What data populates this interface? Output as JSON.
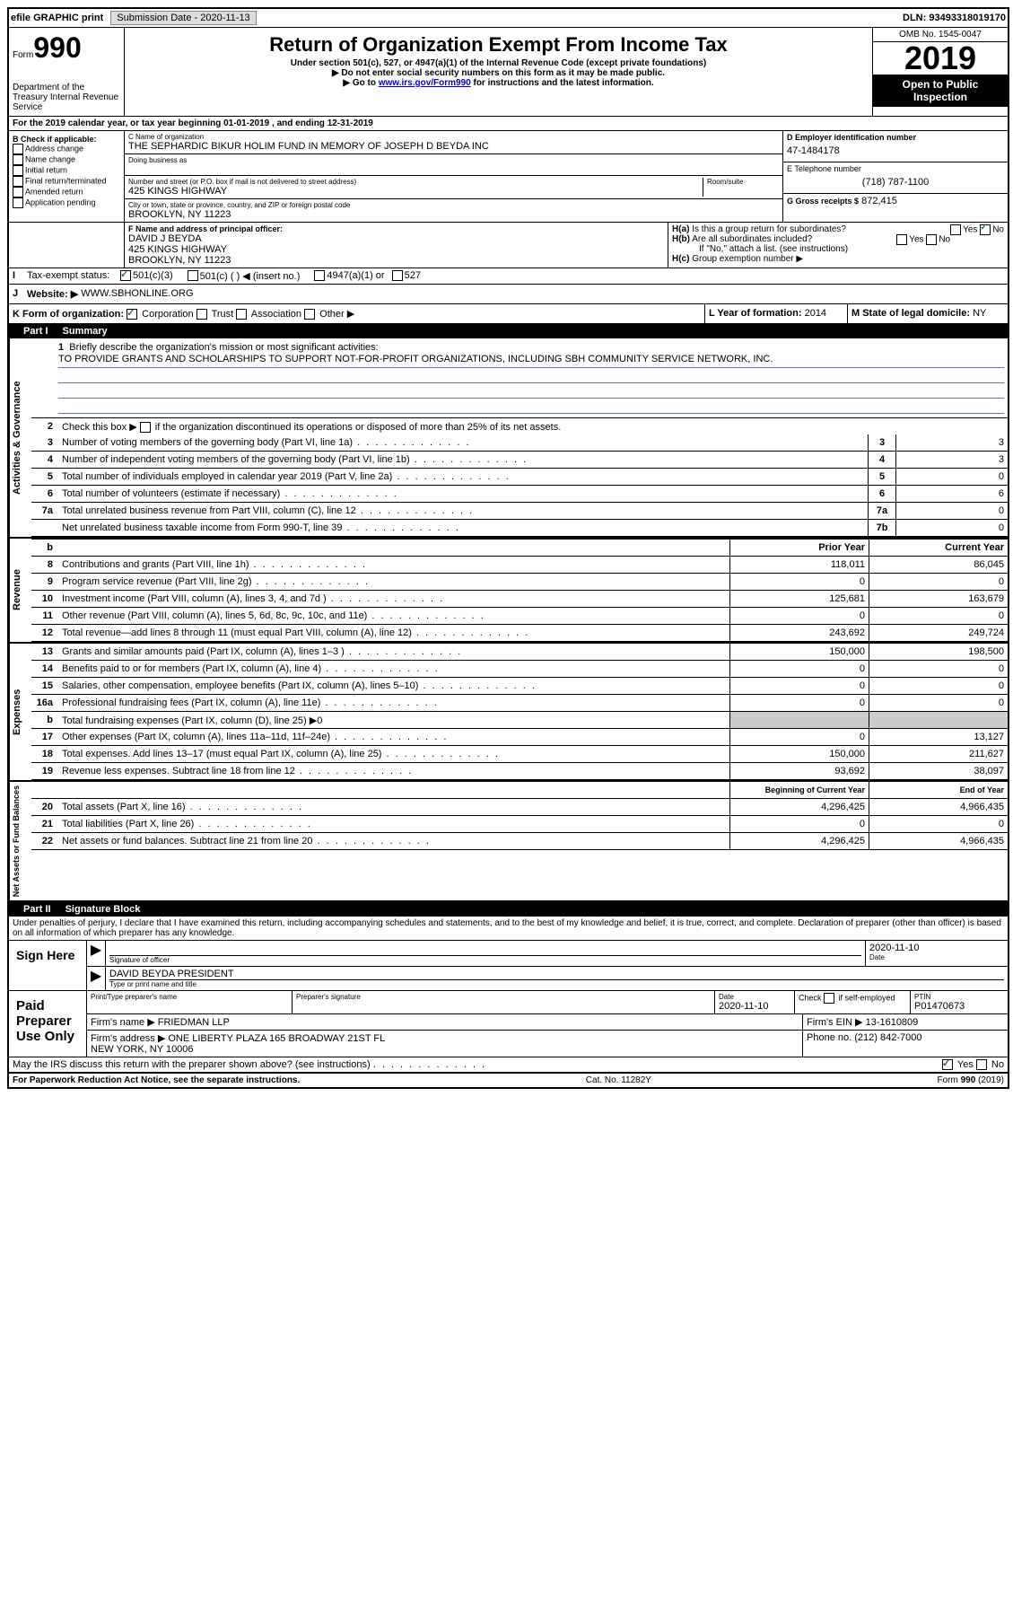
{
  "topbar": {
    "efile": "efile GRAPHIC print",
    "submission_label": "Submission Date - 2020-11-13",
    "dln": "DLN: 93493318019170"
  },
  "header": {
    "form_label": "Form",
    "form_num": "990",
    "dept": "Department of the Treasury\nInternal Revenue Service",
    "title": "Return of Organization Exempt From Income Tax",
    "sub1": "Under section 501(c), 527, or 4947(a)(1) of the Internal Revenue Code (except private foundations)",
    "sub2": "▶ Do not enter social security numbers on this form as it may be made public.",
    "sub3_pre": "▶ Go to ",
    "sub3_link": "www.irs.gov/Form990",
    "sub3_post": " for instructions and the latest information.",
    "omb": "OMB No. 1545-0047",
    "year": "2019",
    "open": "Open to Public Inspection"
  },
  "line_a": "For the 2019 calendar year, or tax year beginning 01-01-2019     , and ending 12-31-2019",
  "col_b": {
    "title": "B Check if applicable:",
    "items": [
      "Address change",
      "Name change",
      "Initial return",
      "Final return/terminated",
      "Amended return",
      "Application pending"
    ]
  },
  "col_c": {
    "name_label": "C Name of organization",
    "name": "THE SEPHARDIC BIKUR HOLIM FUND IN MEMORY OF JOSEPH D BEYDA INC",
    "dba_label": "Doing business as",
    "addr_label": "Number and street (or P.O. box if mail is not delivered to street address)",
    "room_label": "Room/suite",
    "addr": "425 KINGS HIGHWAY",
    "city_label": "City or town, state or province, country, and ZIP or foreign postal code",
    "city": "BROOKLYN, NY  11223"
  },
  "col_d": {
    "ein_label": "D Employer identification number",
    "ein": "47-1484178",
    "phone_label": "E Telephone number",
    "phone": "(718) 787-1100",
    "gross_label": "G Gross receipts $",
    "gross": "872,415"
  },
  "row_f": {
    "label": "F  Name and address of principal officer:",
    "name": "DAVID J BEYDA",
    "addr1": "425 KINGS HIGHWAY",
    "addr2": "BROOKLYN, NY  11223"
  },
  "row_h": {
    "ha": "Is this a group return for subordinates?",
    "hb": "Are all subordinates included?",
    "hb_note": "If \"No,\" attach a list. (see instructions)",
    "hc": "Group exemption number ▶"
  },
  "row_i": {
    "label": "Tax-exempt status:",
    "opts": [
      "501(c)(3)",
      "501(c) (  ) ◀ (insert no.)",
      "4947(a)(1) or",
      "527"
    ]
  },
  "row_j": {
    "label": "Website: ▶",
    "val": "WWW.SBHONLINE.ORG"
  },
  "row_k": {
    "label": "K Form of organization:",
    "opts": [
      "Corporation",
      "Trust",
      "Association",
      "Other ▶"
    ]
  },
  "row_l": {
    "label": "L Year of formation:",
    "val": "2014"
  },
  "row_m": {
    "label": "M State of legal domicile:",
    "val": "NY"
  },
  "part1": {
    "title": "Part I",
    "name": "Summary"
  },
  "mission": {
    "label": "Briefly describe the organization's mission or most significant activities:",
    "text": "TO PROVIDE GRANTS AND SCHOLARSHIPS TO SUPPORT NOT-FOR-PROFIT ORGANIZATIONS, INCLUDING SBH COMMUNITY SERVICE NETWORK, INC."
  },
  "governance": {
    "label": "Activities & Governance",
    "line2": "Check this box ▶       if the organization discontinued its operations or disposed of more than 25% of its net assets.",
    "rows": [
      {
        "n": "3",
        "d": "Number of voting members of the governing body (Part VI, line 1a)",
        "b": "3",
        "v": "3"
      },
      {
        "n": "4",
        "d": "Number of independent voting members of the governing body (Part VI, line 1b)",
        "b": "4",
        "v": "3"
      },
      {
        "n": "5",
        "d": "Total number of individuals employed in calendar year 2019 (Part V, line 2a)",
        "b": "5",
        "v": "0"
      },
      {
        "n": "6",
        "d": "Total number of volunteers (estimate if necessary)",
        "b": "6",
        "v": "6"
      },
      {
        "n": "7a",
        "d": "Total unrelated business revenue from Part VIII, column (C), line 12",
        "b": "7a",
        "v": "0"
      },
      {
        "n": "",
        "d": "Net unrelated business taxable income from Form 990-T, line 39",
        "b": "7b",
        "v": "0"
      }
    ]
  },
  "revenue": {
    "label": "Revenue",
    "prior_h": "Prior Year",
    "curr_h": "Current Year",
    "rows": [
      {
        "n": "8",
        "d": "Contributions and grants (Part VIII, line 1h)",
        "p": "118,011",
        "c": "86,045"
      },
      {
        "n": "9",
        "d": "Program service revenue (Part VIII, line 2g)",
        "p": "0",
        "c": "0"
      },
      {
        "n": "10",
        "d": "Investment income (Part VIII, column (A), lines 3, 4, and 7d )",
        "p": "125,681",
        "c": "163,679"
      },
      {
        "n": "11",
        "d": "Other revenue (Part VIII, column (A), lines 5, 6d, 8c, 9c, 10c, and 11e)",
        "p": "0",
        "c": "0"
      },
      {
        "n": "12",
        "d": "Total revenue—add lines 8 through 11 (must equal Part VIII, column (A), line 12)",
        "p": "243,692",
        "c": "249,724"
      }
    ]
  },
  "expenses": {
    "label": "Expenses",
    "rows": [
      {
        "n": "13",
        "d": "Grants and similar amounts paid (Part IX, column (A), lines 1–3 )",
        "p": "150,000",
        "c": "198,500"
      },
      {
        "n": "14",
        "d": "Benefits paid to or for members (Part IX, column (A), line 4)",
        "p": "0",
        "c": "0"
      },
      {
        "n": "15",
        "d": "Salaries, other compensation, employee benefits (Part IX, column (A), lines 5–10)",
        "p": "0",
        "c": "0"
      },
      {
        "n": "16a",
        "d": "Professional fundraising fees (Part IX, column (A), line 11e)",
        "p": "0",
        "c": "0"
      },
      {
        "n": "b",
        "d": "Total fundraising expenses (Part IX, column (D), line 25) ▶0",
        "p": "",
        "c": "",
        "shaded": true
      },
      {
        "n": "17",
        "d": "Other expenses (Part IX, column (A), lines 11a–11d, 11f–24e)",
        "p": "0",
        "c": "13,127"
      },
      {
        "n": "18",
        "d": "Total expenses. Add lines 13–17 (must equal Part IX, column (A), line 25)",
        "p": "150,000",
        "c": "211,627"
      },
      {
        "n": "19",
        "d": "Revenue less expenses. Subtract line 18 from line 12",
        "p": "93,692",
        "c": "38,097"
      }
    ]
  },
  "netassets": {
    "label": "Net Assets or Fund Balances",
    "begin_h": "Beginning of Current Year",
    "end_h": "End of Year",
    "rows": [
      {
        "n": "20",
        "d": "Total assets (Part X, line 16)",
        "p": "4,296,425",
        "c": "4,966,435"
      },
      {
        "n": "21",
        "d": "Total liabilities (Part X, line 26)",
        "p": "0",
        "c": "0"
      },
      {
        "n": "22",
        "d": "Net assets or fund balances. Subtract line 21 from line 20",
        "p": "4,296,425",
        "c": "4,966,435"
      }
    ]
  },
  "part2": {
    "title": "Part II",
    "name": "Signature Block"
  },
  "perjury": "Under penalties of perjury, I declare that I have examined this return, including accompanying schedules and statements, and to the best of my knowledge and belief, it is true, correct, and complete. Declaration of preparer (other than officer) is based on all information of which preparer has any knowledge.",
  "sign": {
    "label": "Sign Here",
    "sig_label": "Signature of officer",
    "date_label": "Date",
    "date": "2020-11-10",
    "name": "DAVID BEYDA  PRESIDENT",
    "name_label": "Type or print name and title"
  },
  "paid": {
    "label": "Paid Preparer Use Only",
    "h1": "Print/Type preparer's name",
    "h2": "Preparer's signature",
    "h3": "Date",
    "date": "2020-11-10",
    "h4": "Check       if self-employed",
    "h5": "PTIN",
    "ptin": "P01470673",
    "firm_name_label": "Firm's name      ▶",
    "firm_name": "FRIEDMAN LLP",
    "firm_ein_label": "Firm's EIN ▶",
    "firm_ein": "13-1610809",
    "firm_addr_label": "Firm's address ▶",
    "firm_addr": "ONE LIBERTY PLAZA 165 BROADWAY 21ST FL\nNEW YORK, NY  10006",
    "phone_label": "Phone no.",
    "phone": "(212) 842-7000"
  },
  "discuss": "May the IRS discuss this return with the preparer shown above? (see instructions)",
  "footer": {
    "paperwork": "For Paperwork Reduction Act Notice, see the separate instructions.",
    "cat": "Cat. No. 11282Y",
    "form": "Form 990 (2019)"
  }
}
